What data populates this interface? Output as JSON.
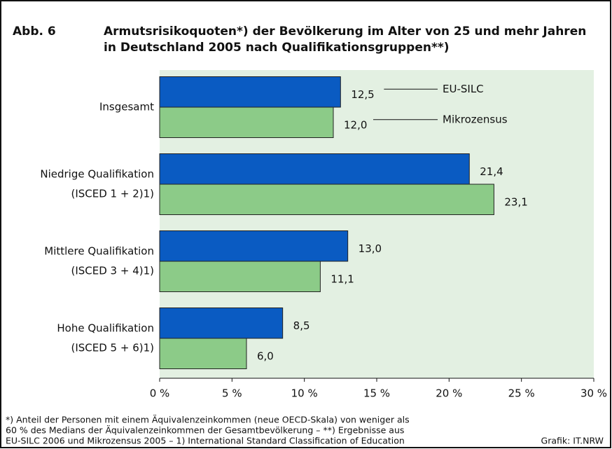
{
  "chart_data": {
    "type": "barh",
    "label": "Abb. 6",
    "title": [
      "Armutsrisikoquoten*) der Bevölkerung im Alter von 25 und mehr Jahren",
      "in Deutschland 2005 nach Qualifikationsgruppen**)"
    ],
    "categories": [
      [
        "Insgesamt"
      ],
      [
        "Niedrige Qualifikation",
        "(ISCED 1 + 2)1)"
      ],
      [
        "Mittlere Qualifikation",
        "(ISCED 3 + 4)1)"
      ],
      [
        "Hohe Qualifikation",
        "(ISCED 5 + 6)1)"
      ]
    ],
    "series": [
      {
        "name": "EU-SILC",
        "color": "#0a5bc2",
        "values": [
          12.5,
          21.4,
          13.0,
          8.5
        ],
        "value_labels": [
          "12,5",
          "21,4",
          "13,0",
          "8,5"
        ]
      },
      {
        "name": "Mikrozensus",
        "color": "#8ccb88",
        "values": [
          12.0,
          23.1,
          11.1,
          6.0
        ],
        "value_labels": [
          "12,0",
          "23,1",
          "11,1",
          "6,0"
        ]
      }
    ],
    "xlim": [
      0,
      30
    ],
    "xticks": [
      {
        "value": 0,
        "label": "0 %"
      },
      {
        "value": 5,
        "label": "5 %"
      },
      {
        "value": 10,
        "label": "10 %"
      },
      {
        "value": 15,
        "label": "15 %"
      },
      {
        "value": 20,
        "label": "20 %"
      },
      {
        "value": 25,
        "label": "25 %"
      },
      {
        "value": 30,
        "label": "30 %"
      }
    ],
    "plot_background": "#e3f0e2",
    "footnotes": [
      "*) Anteil der Personen mit einem Äquivalenzeinkommen (neue OECD-Skala) von weniger als",
      "60 % des Medians der Äquivalenzeinkommen der Gesamtbevölkerung – **) Ergebnisse aus",
      "EU-SILC 2006 und Mikrozensus 2005 – 1) International Standard Classification of Education"
    ],
    "source": "Grafik: IT.NRW"
  }
}
